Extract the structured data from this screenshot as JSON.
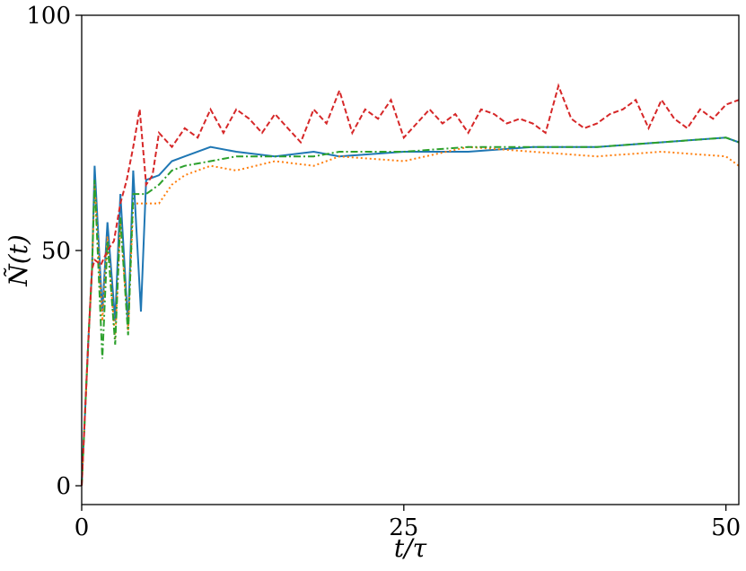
{
  "chart_data": {
    "type": "line",
    "title": "",
    "xlabel": "t/τ",
    "ylabel": "Ñ(t)",
    "xlim": [
      0,
      51
    ],
    "ylim": [
      -4,
      100
    ],
    "xticks": [
      0,
      25,
      50
    ],
    "yticks": [
      0,
      50,
      100
    ],
    "grid": false,
    "legend": "none",
    "series": [
      {
        "color": "#1f77b4",
        "linestyle": "solid",
        "x": [
          0,
          0.5,
          0.8,
          1.0,
          1.6,
          2.0,
          2.6,
          3.0,
          3.6,
          4.0,
          4.6,
          5.0,
          6.0,
          7.0,
          8.0,
          10.0,
          12.0,
          15.0,
          18.0,
          20.0,
          25.0,
          30.0,
          35.0,
          40.0,
          45.0,
          50.0,
          51.0
        ],
        "values": [
          0,
          30,
          46,
          68,
          37,
          56,
          35,
          62,
          34,
          67,
          37,
          65,
          66,
          69,
          70,
          72,
          71,
          70,
          71,
          70,
          71,
          71,
          72,
          72,
          73,
          74,
          73
        ]
      },
      {
        "color": "#ff7f0e",
        "linestyle": "dotted",
        "x": [
          0,
          0.5,
          0.8,
          1.0,
          1.6,
          2.0,
          2.6,
          3.0,
          3.6,
          4.0,
          5.0,
          6.0,
          7.0,
          8.0,
          10.0,
          12.0,
          15.0,
          18.0,
          20.0,
          25.0,
          30.0,
          35.0,
          40.0,
          45.0,
          50.0,
          51.0
        ],
        "values": [
          0,
          30,
          46,
          64,
          35,
          53,
          31,
          56,
          33,
          60,
          60,
          60,
          64,
          66,
          68,
          67,
          69,
          68,
          70,
          69,
          72,
          71,
          70,
          71,
          70,
          68
        ]
      },
      {
        "color": "#2ca02c",
        "linestyle": "dash-dot",
        "x": [
          0,
          0.5,
          0.8,
          1.0,
          1.6,
          2.0,
          2.6,
          3.0,
          3.6,
          4.0,
          5.0,
          6.0,
          7.0,
          8.0,
          10.0,
          12.0,
          15.0,
          18.0,
          20.0,
          25.0,
          30.0,
          35.0,
          40.0,
          45.0,
          50.0,
          51.0
        ],
        "values": [
          0,
          30,
          46,
          65,
          27,
          52,
          30,
          57,
          32,
          62,
          62,
          64,
          67,
          68,
          69,
          70,
          70,
          70,
          71,
          71,
          72,
          72,
          72,
          73,
          74,
          73
        ]
      },
      {
        "color": "#d62728",
        "linestyle": "dashed",
        "x": [
          0,
          0.5,
          0.8,
          1.0,
          1.5,
          2.0,
          2.5,
          3.0,
          3.5,
          4.0,
          4.5,
          5.0,
          5.5,
          6.0,
          7.0,
          8.0,
          9.0,
          10.0,
          11.0,
          12.0,
          13.0,
          14.0,
          15.0,
          16.0,
          17.0,
          18.0,
          19.0,
          20.0,
          21.0,
          22.0,
          23.0,
          24.0,
          25.0,
          26.0,
          27.0,
          28.0,
          29.0,
          30.0,
          31.0,
          32.0,
          33.0,
          34.0,
          35.0,
          36.0,
          37.0,
          38.0,
          39.0,
          40.0,
          41.0,
          42.0,
          43.0,
          44.0,
          45.0,
          46.0,
          47.0,
          48.0,
          49.0,
          50.0,
          51.0
        ],
        "values": [
          0,
          30,
          46,
          48,
          47,
          50,
          52,
          60,
          65,
          72,
          80,
          64,
          66,
          75,
          72,
          76,
          74,
          80,
          75,
          80,
          78,
          75,
          79,
          76,
          73,
          80,
          77,
          84,
          75,
          80,
          78,
          82,
          74,
          77,
          80,
          77,
          79,
          75,
          80,
          79,
          77,
          78,
          77,
          75,
          85,
          78,
          76,
          77,
          79,
          80,
          82,
          76,
          82,
          78,
          76,
          80,
          78,
          81,
          82
        ]
      }
    ]
  }
}
